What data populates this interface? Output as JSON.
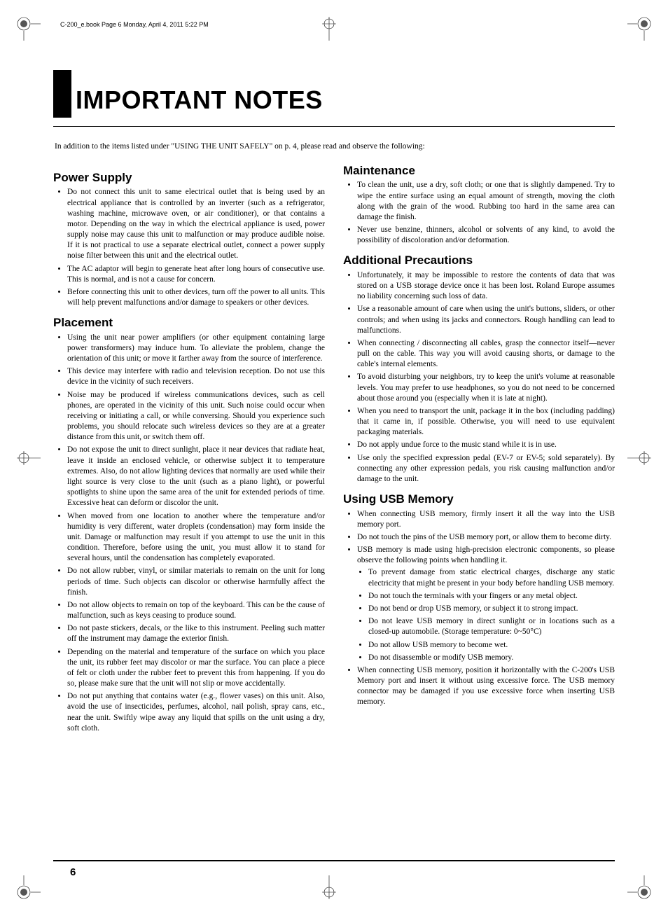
{
  "running_head": "C-200_e.book  Page 6  Monday, April 4, 2011  5:22 PM",
  "title": "IMPORTANT NOTES",
  "intro": "In addition to the items listed under \"USING THE UNIT SAFELY\" on p. 4, please read and observe the following:",
  "page_number": "6",
  "sections": [
    {
      "heading": "Power Supply",
      "items": [
        {
          "text": "Do not connect this unit to same electrical outlet that is being used by an electrical appliance that is controlled by an inverter (such as a refrigerator, washing machine, microwave oven, or air conditioner), or that contains a motor. Depending on the way in which the electrical appliance is used, power supply noise may cause this unit to malfunction or may produce audible noise. If it is not practical to use a separate electrical outlet, connect a power supply noise filter between this unit and the electrical outlet."
        },
        {
          "text": "The AC adaptor will begin to generate heat after long hours of consecutive use. This is normal, and is not a cause for concern."
        },
        {
          "text": "Before connecting this unit to other devices, turn off the power to all units. This will help prevent malfunctions and/or damage to speakers or other devices."
        }
      ]
    },
    {
      "heading": "Placement",
      "items": [
        {
          "text": "Using the unit near power amplifiers (or other equipment containing large power transformers) may induce hum. To alleviate the problem, change the orientation of this unit; or move it farther away from the source of interference."
        },
        {
          "text": "This device may interfere with radio and television reception. Do not use this device in the vicinity of such receivers."
        },
        {
          "text": "Noise may be produced if wireless communications devices, such as cell phones, are operated in the vicinity of this unit. Such noise could occur when receiving or initiating a call, or while conversing. Should you experience such problems, you should relocate such wireless devices so they are at a greater distance from this unit, or switch them off."
        },
        {
          "text": "Do not expose the unit to direct sunlight, place it near devices that radiate heat, leave it inside an enclosed vehicle, or otherwise subject it to temperature extremes. Also, do not allow lighting devices that normally are used while their light source is very close to the unit (such as a piano light), or powerful spotlights to shine upon the same area of the unit for extended periods of time. Excessive heat can deform or discolor the unit."
        },
        {
          "text": "When moved from one location to another where the temperature and/or humidity is very different, water droplets (condensation) may form inside the unit. Damage or malfunction may result if you attempt to use the unit in this condition. Therefore, before using the unit, you must allow it to stand for several hours, until the condensation has completely evaporated."
        },
        {
          "text": "Do not allow rubber, vinyl, or similar materials to remain on the unit for long periods of time. Such objects can discolor or otherwise harmfully affect the finish."
        },
        {
          "text": "Do not allow objects to remain on top of the keyboard. This can be the cause of malfunction, such as keys ceasing to produce sound."
        },
        {
          "text": "Do not paste stickers, decals, or the like to this instrument. Peeling such matter off the instrument may damage the exterior finish."
        },
        {
          "text": "Depending on the material and temperature of the surface on which you place the unit, its rubber feet may discolor or mar the surface. You can place a piece of felt or cloth under the rubber feet to prevent this from happening. If you do so, please make sure that the unit will not slip or move accidentally."
        },
        {
          "text": "Do not put anything that contains water (e.g., flower vases) on this unit. Also, avoid the use of insecticides, perfumes, alcohol, nail polish, spray cans, etc., near the unit. Swiftly wipe away any liquid that spills on the unit using a dry, soft cloth."
        }
      ]
    },
    {
      "heading": "Maintenance",
      "items": [
        {
          "text": "To clean the unit, use a dry, soft cloth; or one that is slightly dampened. Try to wipe the entire surface using an equal amount of strength, moving the cloth along with the grain of the wood. Rubbing too hard in the same area can damage the finish."
        },
        {
          "text": "Never use benzine, thinners, alcohol or solvents of any kind, to avoid the possibility of discoloration and/or deformation."
        }
      ]
    },
    {
      "heading": "Additional Precautions",
      "items": [
        {
          "text": "Unfortunately, it may be impossible to restore the contents of data that was stored on a USB storage device once it has been lost. Roland Europe assumes no liability concerning such loss of data."
        },
        {
          "text": "Use a reasonable amount of care when using the unit's buttons, sliders, or other controls; and when using its jacks and connectors. Rough handling can lead to malfunctions."
        },
        {
          "text": "When connecting / disconnecting all cables, grasp the connector itself—never pull on the cable. This way you will avoid causing shorts, or damage to the cable's internal elements."
        },
        {
          "text": "To avoid disturbing your neighbors, try to keep the unit's volume at reasonable levels. You may prefer to use headphones, so you do not need to be concerned about those around you (especially when it is late at night)."
        },
        {
          "text": "When you need to transport the unit, package it in the box (including padding) that it came in, if possible. Otherwise, you will need to use equivalent packaging materials."
        },
        {
          "text": "Do not apply undue force to the music stand while it is in use."
        },
        {
          "text": "Use only the specified expression pedal (EV-7 or EV-5; sold separately). By connecting any other expression pedals, you risk causing malfunction and/or damage to the unit."
        }
      ]
    },
    {
      "heading": "Using USB Memory",
      "items": [
        {
          "text": "When connecting USB memory, firmly insert it all the way into the USB memory port."
        },
        {
          "text": "Do not touch the pins of the USB memory port, or allow them to become dirty."
        },
        {
          "text": "USB memory is made using high-precision electronic components, so please observe the following points when handling it.",
          "sub": [
            "To prevent damage from static electrical charges, discharge any static electricity that might be present in your body before handling USB memory.",
            "Do not touch the terminals with your fingers or any metal object.",
            "Do not bend or drop USB memory, or subject it to strong impact.",
            "Do not leave USB memory in direct sunlight or in locations such as a closed-up automobile. (Storage temperature: 0~50°C)",
            "Do not allow USB memory to become wet.",
            "Do not disassemble or modify USB memory."
          ]
        },
        {
          "text": "When connecting USB memory, position it horizontally with the C-200's USB Memory port and insert it without using excessive force. The USB memory connector may be damaged if you use excessive force when inserting USB memory."
        }
      ]
    }
  ]
}
